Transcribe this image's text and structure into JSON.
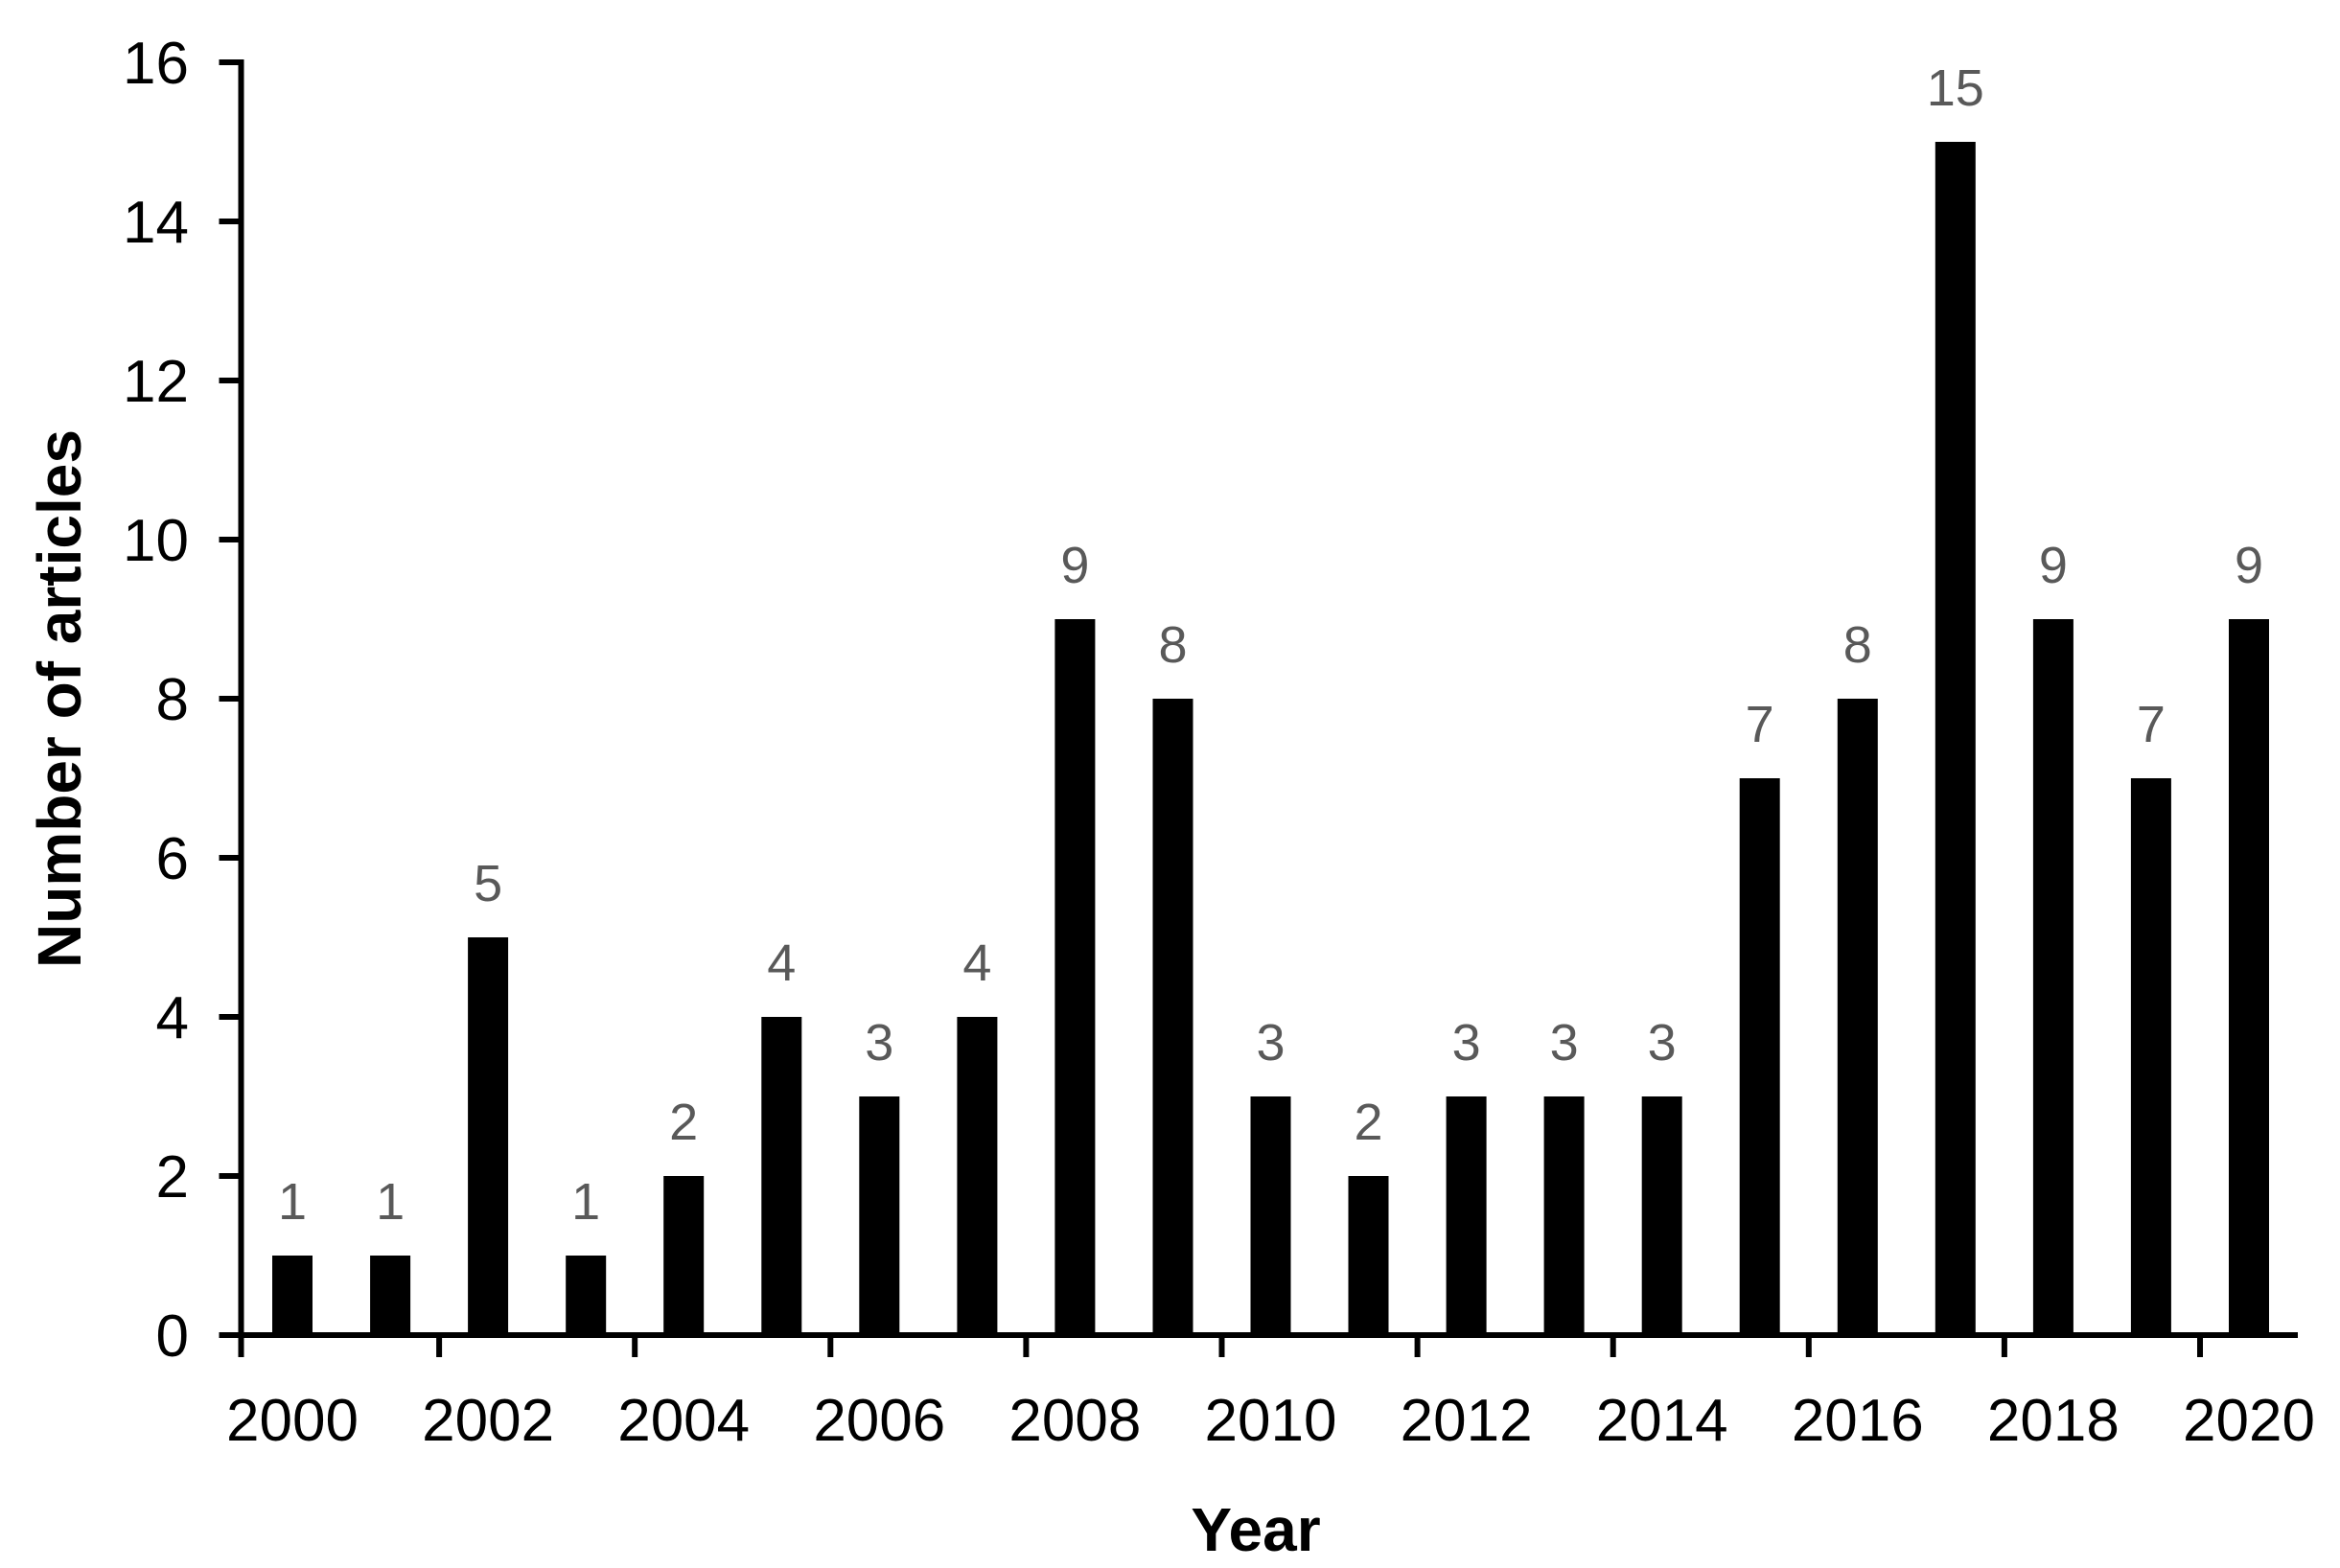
{
  "chart_data": {
    "type": "bar",
    "title": "",
    "xlabel": "Year",
    "ylabel": "Number of articles",
    "categories": [
      "2000",
      "2001",
      "2002",
      "2003",
      "2004",
      "2005",
      "2006",
      "2007",
      "2008",
      "2009",
      "2010",
      "2011",
      "2012",
      "2013",
      "2014",
      "2015",
      "2016",
      "2017",
      "2018",
      "2019",
      "2020"
    ],
    "values": [
      1,
      1,
      5,
      1,
      2,
      4,
      3,
      4,
      9,
      8,
      3,
      2,
      3,
      3,
      3,
      7,
      8,
      15,
      9,
      7,
      9
    ],
    "data_labels": [
      "1",
      "1",
      "5",
      "1",
      "2",
      "4",
      "3",
      "4",
      "9",
      "8",
      "3",
      "2",
      "3",
      "3",
      "3",
      "7",
      "8",
      "15",
      "9",
      "7",
      "9"
    ],
    "ylim": [
      0,
      16
    ],
    "yticks": [
      0,
      2,
      4,
      6,
      8,
      10,
      12,
      14,
      16
    ],
    "xtick_labels": [
      "2000",
      "2002",
      "2004",
      "2006",
      "2008",
      "2010",
      "2012",
      "2014",
      "2016",
      "2018",
      "2020"
    ],
    "xtick_label_interval": 2,
    "data_labels_shown": true,
    "grid": false,
    "legend": "none",
    "colors": {
      "bar": "#000000",
      "axis": "#000000",
      "tick_label": "#000000",
      "axis_title": "#000000",
      "data_label": "#595959",
      "background": "#ffffff"
    }
  }
}
